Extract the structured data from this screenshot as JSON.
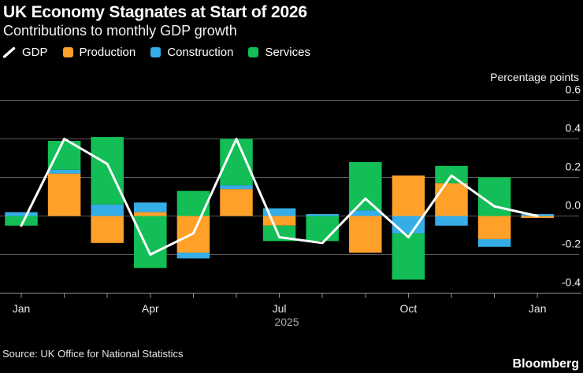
{
  "header": {
    "title": "UK Economy Stagnates at Start of 2026",
    "subtitle": "Contributions to monthly GDP growth"
  },
  "legend": [
    {
      "label": "GDP",
      "icon": "line-swatch",
      "color": "#ffffff"
    },
    {
      "label": "Production",
      "icon": "square-swatch",
      "color": "#ffa028"
    },
    {
      "label": "Construction",
      "icon": "square-swatch",
      "color": "#35ade8"
    },
    {
      "label": "Services",
      "icon": "square-swatch",
      "color": "#12be55"
    }
  ],
  "chart_data": {
    "type": "bar",
    "subtype": "stacked-bars-with-line",
    "title": "UK Economy Stagnates at Start of 2026",
    "subtitle": "Contributions to monthly GDP growth",
    "ylabel": "Percentage points",
    "xlabel": "",
    "year_label": "2025",
    "categories": [
      "Jan 2025",
      "Feb 2025",
      "Mar 2025",
      "Apr 2025",
      "May 2025",
      "Jun 2025",
      "Jul 2025",
      "Aug 2025",
      "Sep 2025",
      "Oct 2025",
      "Nov 2025",
      "Dec 2025",
      "Jan 2026"
    ],
    "x_tick_labels": [
      {
        "index": 0,
        "label": "Jan"
      },
      {
        "index": 3,
        "label": "Apr"
      },
      {
        "index": 6,
        "label": "Jul"
      },
      {
        "index": 9,
        "label": "Oct"
      },
      {
        "index": 12,
        "label": "Jan"
      }
    ],
    "series": [
      {
        "name": "Production",
        "color": "#ffa028",
        "values": [
          0.0,
          0.22,
          -0.14,
          0.02,
          -0.19,
          0.14,
          -0.05,
          0.0,
          -0.19,
          0.21,
          0.17,
          -0.12,
          -0.01
        ]
      },
      {
        "name": "Construction",
        "color": "#35ade8",
        "values": [
          0.02,
          0.02,
          0.06,
          0.05,
          -0.03,
          0.02,
          0.04,
          0.01,
          0.03,
          -0.09,
          -0.05,
          -0.04,
          0.01
        ]
      },
      {
        "name": "Services",
        "color": "#12be55",
        "values": [
          -0.05,
          0.15,
          0.35,
          -0.27,
          0.13,
          0.24,
          -0.08,
          -0.13,
          0.25,
          -0.24,
          0.09,
          0.2,
          0.0
        ]
      }
    ],
    "line_series": {
      "name": "GDP",
      "color": "#ffffff",
      "values": [
        -0.05,
        0.4,
        0.27,
        -0.2,
        -0.09,
        0.4,
        -0.11,
        -0.14,
        0.09,
        -0.11,
        0.21,
        0.05,
        0.0
      ]
    },
    "y_ticks": [
      0.6,
      0.4,
      0.2,
      0.0,
      -0.2,
      -0.4
    ],
    "ylim": [
      -0.45,
      0.65
    ],
    "grid": true,
    "legend_position": "top-left",
    "colors": {
      "background": "#000000",
      "gridline": "#5a5a5a",
      "axis": "#8f8f8f",
      "tick_label": "#f0f0f0",
      "month_label": "#e8e8e8",
      "year_label": "#a8a8a8"
    }
  },
  "footer": {
    "source": "Source: UK Office for National Statistics",
    "brand": "Bloomberg"
  }
}
